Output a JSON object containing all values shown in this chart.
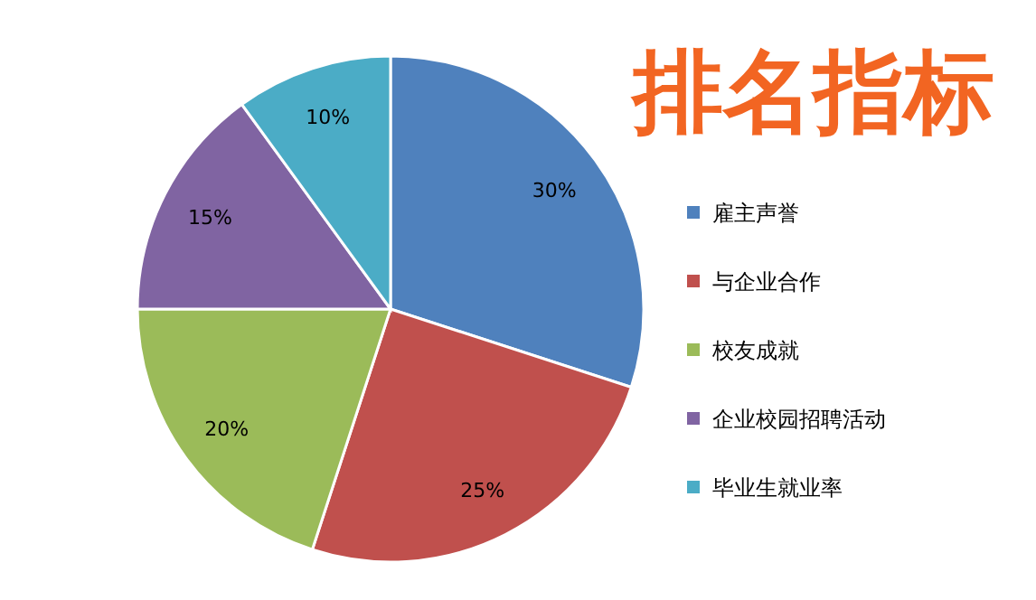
{
  "chart_data": {
    "type": "pie",
    "title": "排名指标",
    "categories": [
      "雇主声誉",
      "与企业合作",
      "校友成就",
      "企业校园招聘活动",
      "毕业生就业率"
    ],
    "values": [
      30,
      25,
      20,
      15,
      10
    ],
    "colors": [
      "#4f81bd",
      "#c0504d",
      "#9bbb59",
      "#8064a2",
      "#4bacc6"
    ],
    "value_labels": [
      "30%",
      "25%",
      "20%",
      "15%",
      "10%"
    ],
    "legend": "right"
  }
}
